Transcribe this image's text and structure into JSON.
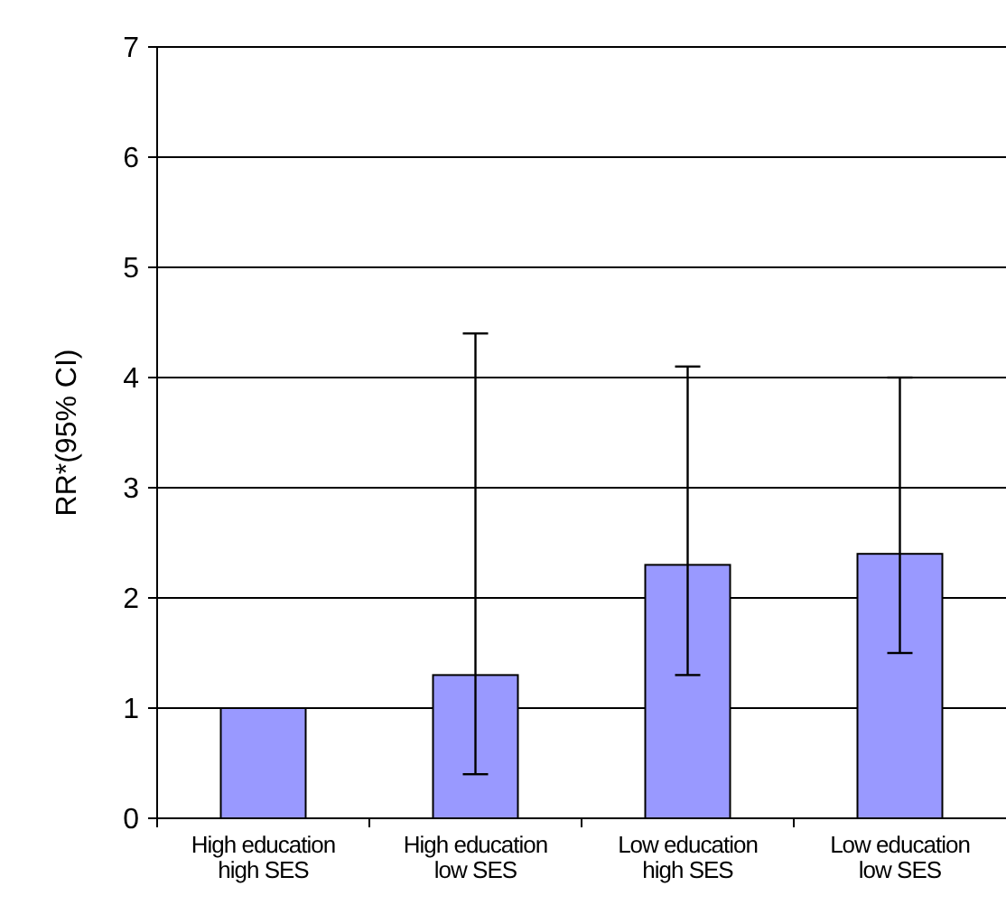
{
  "chart_data": {
    "type": "bar",
    "ylabel": "RR*(95% CI)",
    "categories": [
      "High education high SES",
      "High education low SES",
      "Low education high SES",
      "Low education low SES"
    ],
    "values": [
      1,
      1.3,
      2.3,
      2.4
    ],
    "errors": [
      null,
      [
        0.4,
        4.4
      ],
      [
        1.3,
        4.1
      ],
      [
        1.5,
        4.0
      ]
    ],
    "color": "#9999ff",
    "ylim": [
      0,
      7
    ],
    "yticks": [
      0,
      1,
      2,
      3,
      4,
      5,
      6,
      7
    ],
    "grid": "y"
  }
}
